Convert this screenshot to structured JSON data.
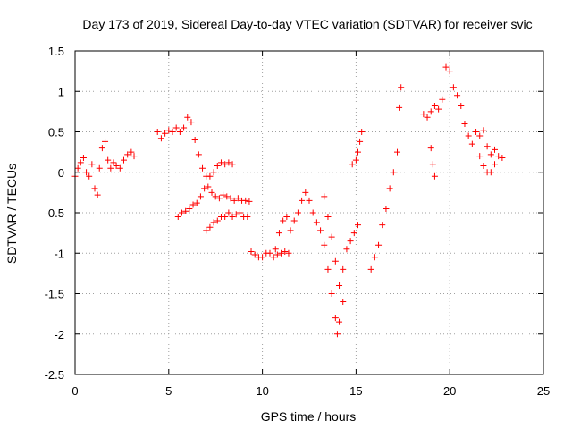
{
  "chart_data": {
    "type": "scatter",
    "title": "Day 173 of 2019, Sidereal Day-to-day VTEC variation (SDTVAR) for receiver svic",
    "xlabel": "GPS time / hours",
    "ylabel": "SDTVAR / TECUs",
    "xlim": [
      0,
      25
    ],
    "ylim": [
      -2.5,
      1.5
    ],
    "x_ticks": [
      0,
      5,
      10,
      15,
      20,
      25
    ],
    "y_ticks": [
      -2.5,
      -2,
      -1.5,
      -1,
      -0.5,
      0,
      0.5,
      1,
      1.5
    ],
    "x_tick_labels": [
      "0",
      "5",
      "10",
      "15",
      "20",
      "25"
    ],
    "y_tick_labels": [
      "-2.5",
      "-2",
      "-1.5",
      "-1",
      "-0.5",
      "0",
      "0.5",
      "1",
      "1.5"
    ],
    "grid": true,
    "marker": "+",
    "color": "#ff0000",
    "series": [
      {
        "name": "SDTVAR",
        "x": [
          0.0,
          0.15,
          0.3,
          0.45,
          0.6,
          0.75,
          0.9,
          1.05,
          1.2,
          1.3,
          1.45,
          1.6,
          1.75,
          1.9,
          2.05,
          2.2,
          2.4,
          2.6,
          2.8,
          3.0,
          3.15,
          4.4,
          4.6,
          4.8,
          5.0,
          5.2,
          5.4,
          5.6,
          5.8,
          6.0,
          6.2,
          6.4,
          6.6,
          6.8,
          7.0,
          7.2,
          7.4,
          7.6,
          7.8,
          8.0,
          8.2,
          8.4,
          5.5,
          5.7,
          5.9,
          6.1,
          6.3,
          6.5,
          6.7,
          6.9,
          7.1,
          7.3,
          7.5,
          7.7,
          7.9,
          8.1,
          8.3,
          8.5,
          8.7,
          8.9,
          9.1,
          9.3,
          7.0,
          7.2,
          7.4,
          7.6,
          7.8,
          8.0,
          8.2,
          8.4,
          8.6,
          8.8,
          9.0,
          9.2,
          9.4,
          9.6,
          9.8,
          10.0,
          10.2,
          10.4,
          10.6,
          10.8,
          11.0,
          11.2,
          11.4,
          10.7,
          10.9,
          11.1,
          11.3,
          11.5,
          11.7,
          11.9,
          12.1,
          12.3,
          12.5,
          12.7,
          12.9,
          13.1,
          13.3,
          13.5,
          13.7,
          13.9,
          14.0,
          14.1,
          14.3,
          13.3,
          13.5,
          13.7,
          13.9,
          14.1,
          14.3,
          14.5,
          14.7,
          14.9,
          15.1,
          14.8,
          15.0,
          15.1,
          15.2,
          15.3,
          15.8,
          16.0,
          16.2,
          16.4,
          16.6,
          16.8,
          17.0,
          17.2,
          17.3,
          17.4,
          18.6,
          18.8,
          19.0,
          19.2,
          19.4,
          19.6,
          19.8,
          20.0,
          20.2,
          20.4,
          20.6,
          20.8,
          21.0,
          21.2,
          21.4,
          21.6,
          21.8,
          22.0,
          22.2,
          22.4,
          22.6,
          22.8,
          21.6,
          21.8,
          22.0,
          22.2,
          22.4,
          19.0,
          19.1,
          19.2
        ],
        "y": [
          -0.05,
          0.05,
          0.12,
          0.18,
          0.0,
          -0.05,
          0.1,
          -0.2,
          -0.28,
          0.05,
          0.3,
          0.38,
          0.15,
          0.05,
          0.12,
          0.08,
          0.05,
          0.15,
          0.22,
          0.25,
          0.2,
          0.5,
          0.42,
          0.48,
          0.52,
          0.5,
          0.55,
          0.5,
          0.55,
          0.68,
          0.62,
          0.4,
          0.22,
          0.05,
          -0.05,
          -0.05,
          0.0,
          0.08,
          0.12,
          0.1,
          0.12,
          0.1,
          -0.55,
          -0.5,
          -0.48,
          -0.45,
          -0.4,
          -0.38,
          -0.3,
          -0.2,
          -0.18,
          -0.25,
          -0.3,
          -0.32,
          -0.28,
          -0.3,
          -0.32,
          -0.35,
          -0.32,
          -0.35,
          -0.35,
          -0.36,
          -0.72,
          -0.68,
          -0.62,
          -0.6,
          -0.55,
          -0.55,
          -0.5,
          -0.55,
          -0.52,
          -0.5,
          -0.55,
          -0.55,
          -0.98,
          -1.02,
          -1.05,
          -1.05,
          -1.0,
          -1.0,
          -1.05,
          -1.02,
          -1.0,
          -0.98,
          -1.0,
          -0.95,
          -0.75,
          -0.6,
          -0.55,
          -0.72,
          -0.6,
          -0.5,
          -0.35,
          -0.25,
          -0.35,
          -0.5,
          -0.62,
          -0.72,
          -0.9,
          -1.2,
          -1.5,
          -1.8,
          -2.0,
          -1.85,
          -1.6,
          -0.3,
          -0.55,
          -0.8,
          -1.1,
          -1.4,
          -1.2,
          -0.95,
          -0.85,
          -0.75,
          -0.65,
          0.1,
          0.15,
          0.25,
          0.38,
          0.5,
          -1.2,
          -1.05,
          -0.9,
          -0.65,
          -0.45,
          -0.2,
          0.0,
          0.25,
          0.8,
          1.05,
          0.72,
          0.68,
          0.75,
          0.82,
          0.78,
          0.9,
          1.3,
          1.25,
          1.05,
          0.95,
          0.82,
          0.6,
          0.45,
          0.35,
          0.5,
          0.45,
          0.52,
          0.32,
          0.22,
          0.28,
          0.2,
          0.18,
          0.2,
          0.08,
          0.0,
          0.0,
          0.1,
          0.3,
          0.1,
          -0.05
        ]
      }
    ]
  }
}
